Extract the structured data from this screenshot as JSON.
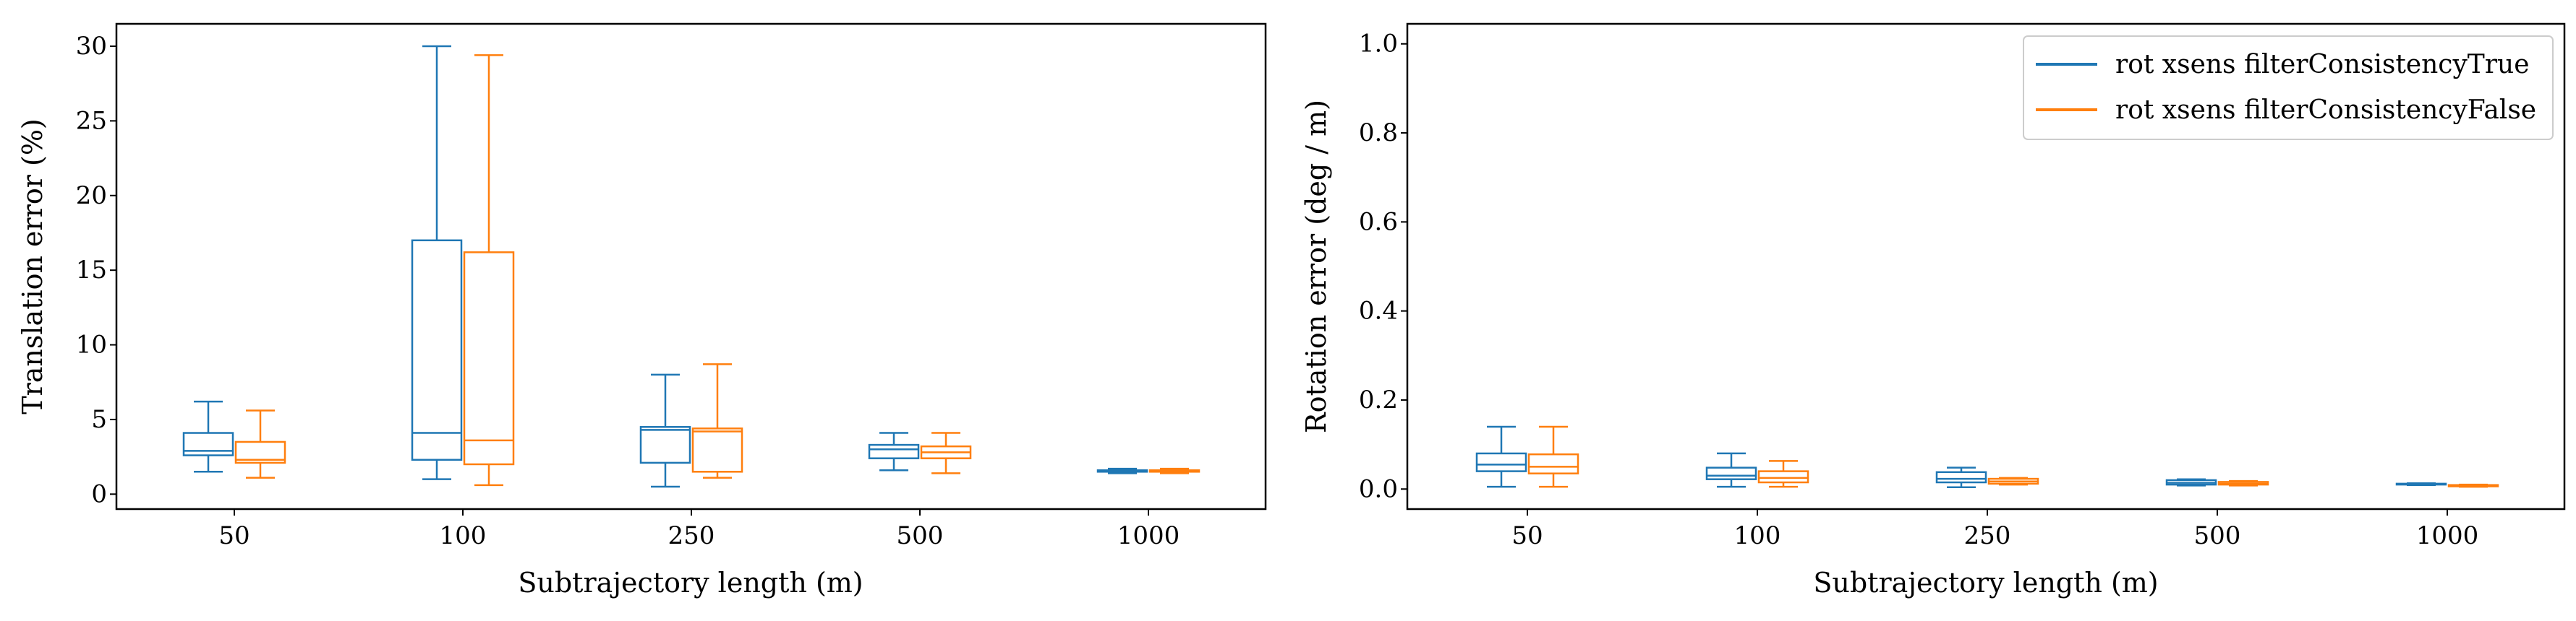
{
  "colors": {
    "series_true": "#1f77b4",
    "series_false": "#ff7f0e",
    "axes": "#000000"
  },
  "chart_data": [
    {
      "type": "box",
      "xlabel": "Subtrajectory length (m)",
      "ylabel": "Translation error (%)",
      "ylim": [
        -1,
        31.5
      ],
      "yticks": [
        0,
        5,
        10,
        15,
        20,
        25,
        30
      ],
      "categories": [
        "50",
        "100",
        "250",
        "500",
        "1000"
      ],
      "legend": "none",
      "series": [
        {
          "color": "#1f77b4",
          "boxes": [
            {
              "whislo": 1.5,
              "q1": 2.6,
              "med": 2.9,
              "q3": 4.1,
              "whishi": 6.2
            },
            {
              "whislo": 1.0,
              "q1": 2.3,
              "med": 4.1,
              "q3": 17.0,
              "whishi": 30.0
            },
            {
              "whislo": 0.5,
              "q1": 2.1,
              "med": 4.3,
              "q3": 4.5,
              "whishi": 8.0
            },
            {
              "whislo": 1.6,
              "q1": 2.4,
              "med": 3.0,
              "q3": 3.3,
              "whishi": 4.1
            },
            {
              "whislo": 1.4,
              "q1": 1.5,
              "med": 1.55,
              "q3": 1.6,
              "whishi": 1.7
            }
          ]
        },
        {
          "color": "#ff7f0e",
          "boxes": [
            {
              "whislo": 1.1,
              "q1": 2.1,
              "med": 2.3,
              "q3": 3.5,
              "whishi": 5.6
            },
            {
              "whislo": 0.6,
              "q1": 2.0,
              "med": 3.6,
              "q3": 16.2,
              "whishi": 29.4
            },
            {
              "whislo": 1.1,
              "q1": 1.5,
              "med": 4.2,
              "q3": 4.4,
              "whishi": 8.7
            },
            {
              "whislo": 1.4,
              "q1": 2.4,
              "med": 2.8,
              "q3": 3.2,
              "whishi": 4.1
            },
            {
              "whislo": 1.4,
              "q1": 1.5,
              "med": 1.55,
              "q3": 1.6,
              "whishi": 1.7
            }
          ]
        }
      ]
    },
    {
      "type": "box",
      "xlabel": "Subtrajectory length (m)",
      "ylabel": "Rotation error (deg / m)",
      "ylim": [
        -0.045,
        1.045
      ],
      "yticks": [
        0.0,
        0.2,
        0.4,
        0.6,
        0.8,
        1.0
      ],
      "categories": [
        "50",
        "100",
        "250",
        "500",
        "1000"
      ],
      "legend": "top-right",
      "series": [
        {
          "name": "rot xsens filterConsistencyTrue",
          "color": "#1f77b4",
          "boxes": [
            {
              "whislo": 0.005,
              "q1": 0.04,
              "med": 0.055,
              "q3": 0.08,
              "whishi": 0.14
            },
            {
              "whislo": 0.005,
              "q1": 0.022,
              "med": 0.03,
              "q3": 0.048,
              "whishi": 0.08
            },
            {
              "whislo": 0.004,
              "q1": 0.015,
              "med": 0.023,
              "q3": 0.038,
              "whishi": 0.048
            },
            {
              "whislo": 0.008,
              "q1": 0.01,
              "med": 0.014,
              "q3": 0.02,
              "whishi": 0.022
            },
            {
              "whislo": 0.009,
              "q1": 0.01,
              "med": 0.011,
              "q3": 0.012,
              "whishi": 0.013
            }
          ]
        },
        {
          "name": "rot xsens filterConsistencyFalse",
          "color": "#ff7f0e",
          "boxes": [
            {
              "whislo": 0.005,
              "q1": 0.035,
              "med": 0.05,
              "q3": 0.078,
              "whishi": 0.14
            },
            {
              "whislo": 0.005,
              "q1": 0.015,
              "med": 0.025,
              "q3": 0.04,
              "whishi": 0.063
            },
            {
              "whislo": 0.01,
              "q1": 0.012,
              "med": 0.017,
              "q3": 0.023,
              "whishi": 0.025
            },
            {
              "whislo": 0.008,
              "q1": 0.01,
              "med": 0.012,
              "q3": 0.016,
              "whishi": 0.018
            },
            {
              "whislo": 0.005,
              "q1": 0.006,
              "med": 0.007,
              "q3": 0.009,
              "whishi": 0.01
            }
          ]
        }
      ]
    }
  ]
}
